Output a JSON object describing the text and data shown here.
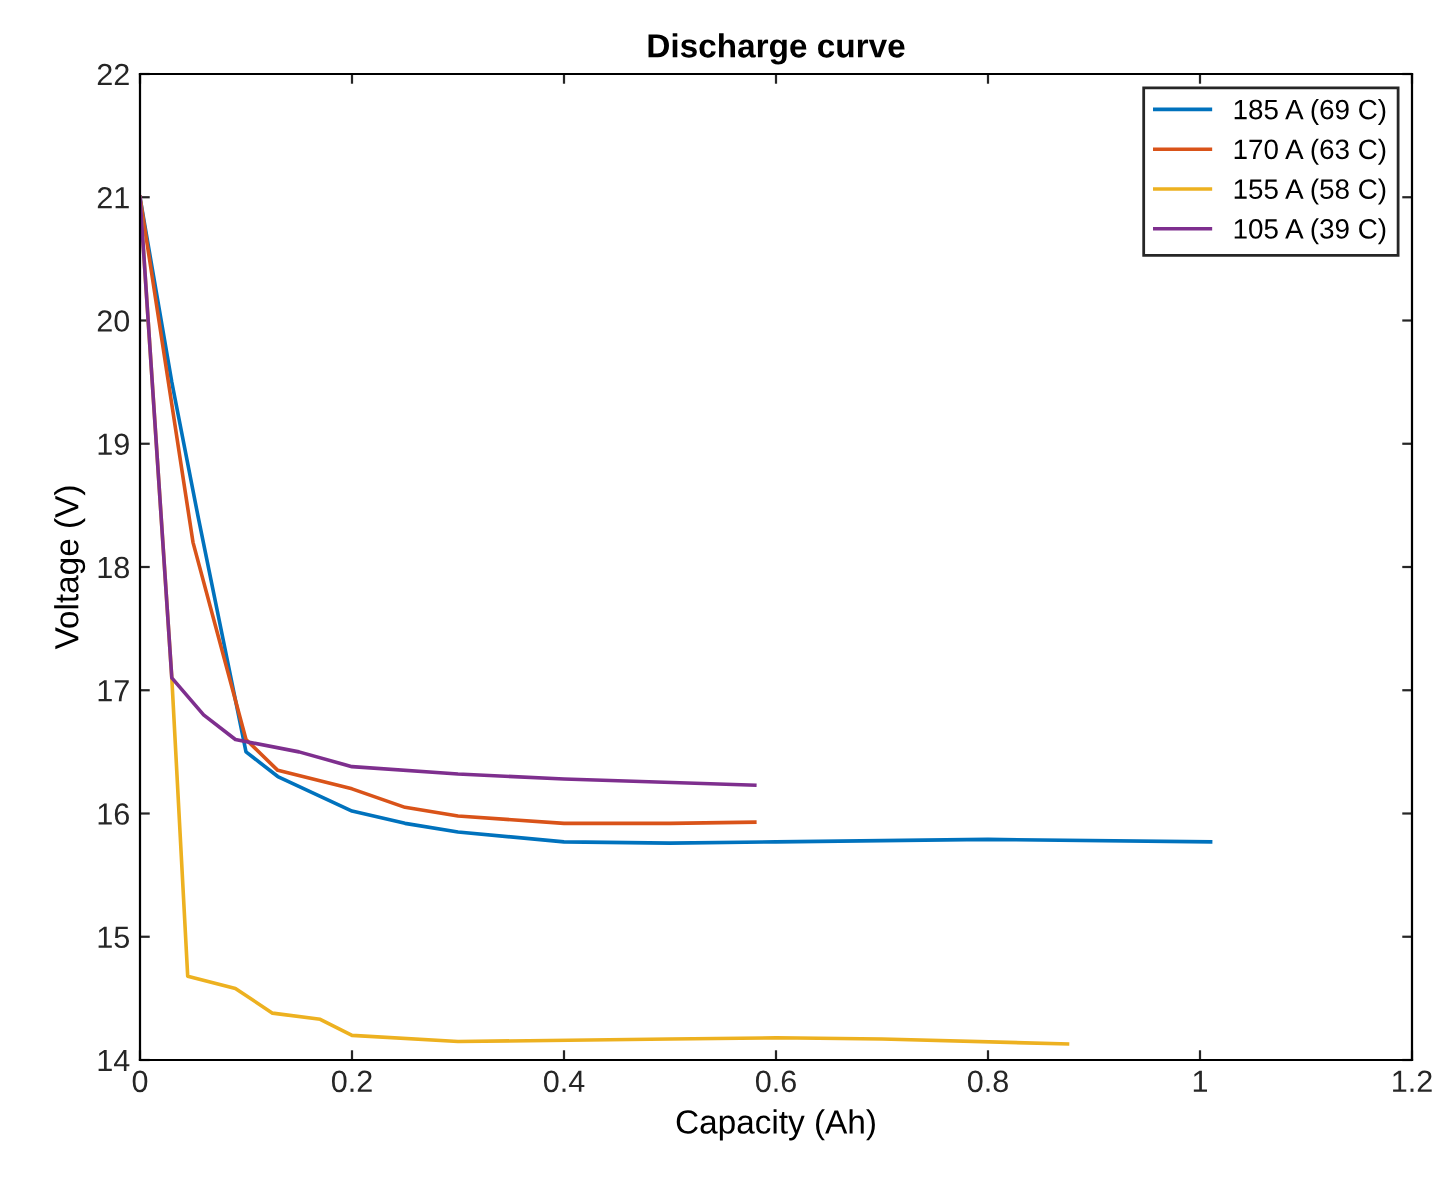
{
  "chart_data": {
    "type": "line",
    "title": "Discharge curve",
    "xlabel": "Capacity (Ah)",
    "ylabel": "Voltage (V)",
    "xlim": [
      0,
      1.2
    ],
    "xticks": [
      0,
      0.2,
      0.4,
      0.6,
      0.8,
      1,
      1.2
    ],
    "ylim": [
      14,
      22
    ],
    "yticks": [
      14,
      15,
      16,
      17,
      18,
      19,
      20,
      21,
      22
    ],
    "grid": false,
    "legend": "top right",
    "line_style": "solid",
    "marker": "none",
    "series": [
      {
        "name": "185 A (69 C)",
        "color": "#0072bd",
        "x": [
          0,
          0.03,
          0.055,
          0.1,
          0.13,
          0.2,
          0.25,
          0.3,
          0.4,
          0.5,
          0.6,
          0.8,
          1.01
        ],
        "values": [
          21,
          19.5,
          18.4,
          16.5,
          16.3,
          16.02,
          15.92,
          15.85,
          15.77,
          15.76,
          15.77,
          15.79,
          15.77
        ]
      },
      {
        "name": "170 A (63 C)",
        "color": "#d95319",
        "x": [
          0,
          0.05,
          0.1,
          0.13,
          0.2,
          0.25,
          0.3,
          0.4,
          0.5,
          0.58
        ],
        "values": [
          21,
          18.2,
          16.6,
          16.35,
          16.2,
          16.05,
          15.98,
          15.92,
          15.92,
          15.93
        ]
      },
      {
        "name": "155 A (58 C)",
        "color": "#edb120",
        "x": [
          0,
          0.03,
          0.045,
          0.09,
          0.125,
          0.17,
          0.2,
          0.3,
          0.5,
          0.6,
          0.7,
          0.875
        ],
        "values": [
          21,
          17.1,
          14.68,
          14.58,
          14.38,
          14.33,
          14.2,
          14.15,
          14.17,
          14.18,
          14.17,
          14.13
        ]
      },
      {
        "name": "105 A (39 C)",
        "color": "#7e2f8e",
        "x": [
          0,
          0.03,
          0.06,
          0.09,
          0.15,
          0.2,
          0.3,
          0.4,
          0.58
        ],
        "values": [
          21,
          17.1,
          16.8,
          16.6,
          16.5,
          16.38,
          16.32,
          16.28,
          16.23
        ]
      }
    ]
  }
}
